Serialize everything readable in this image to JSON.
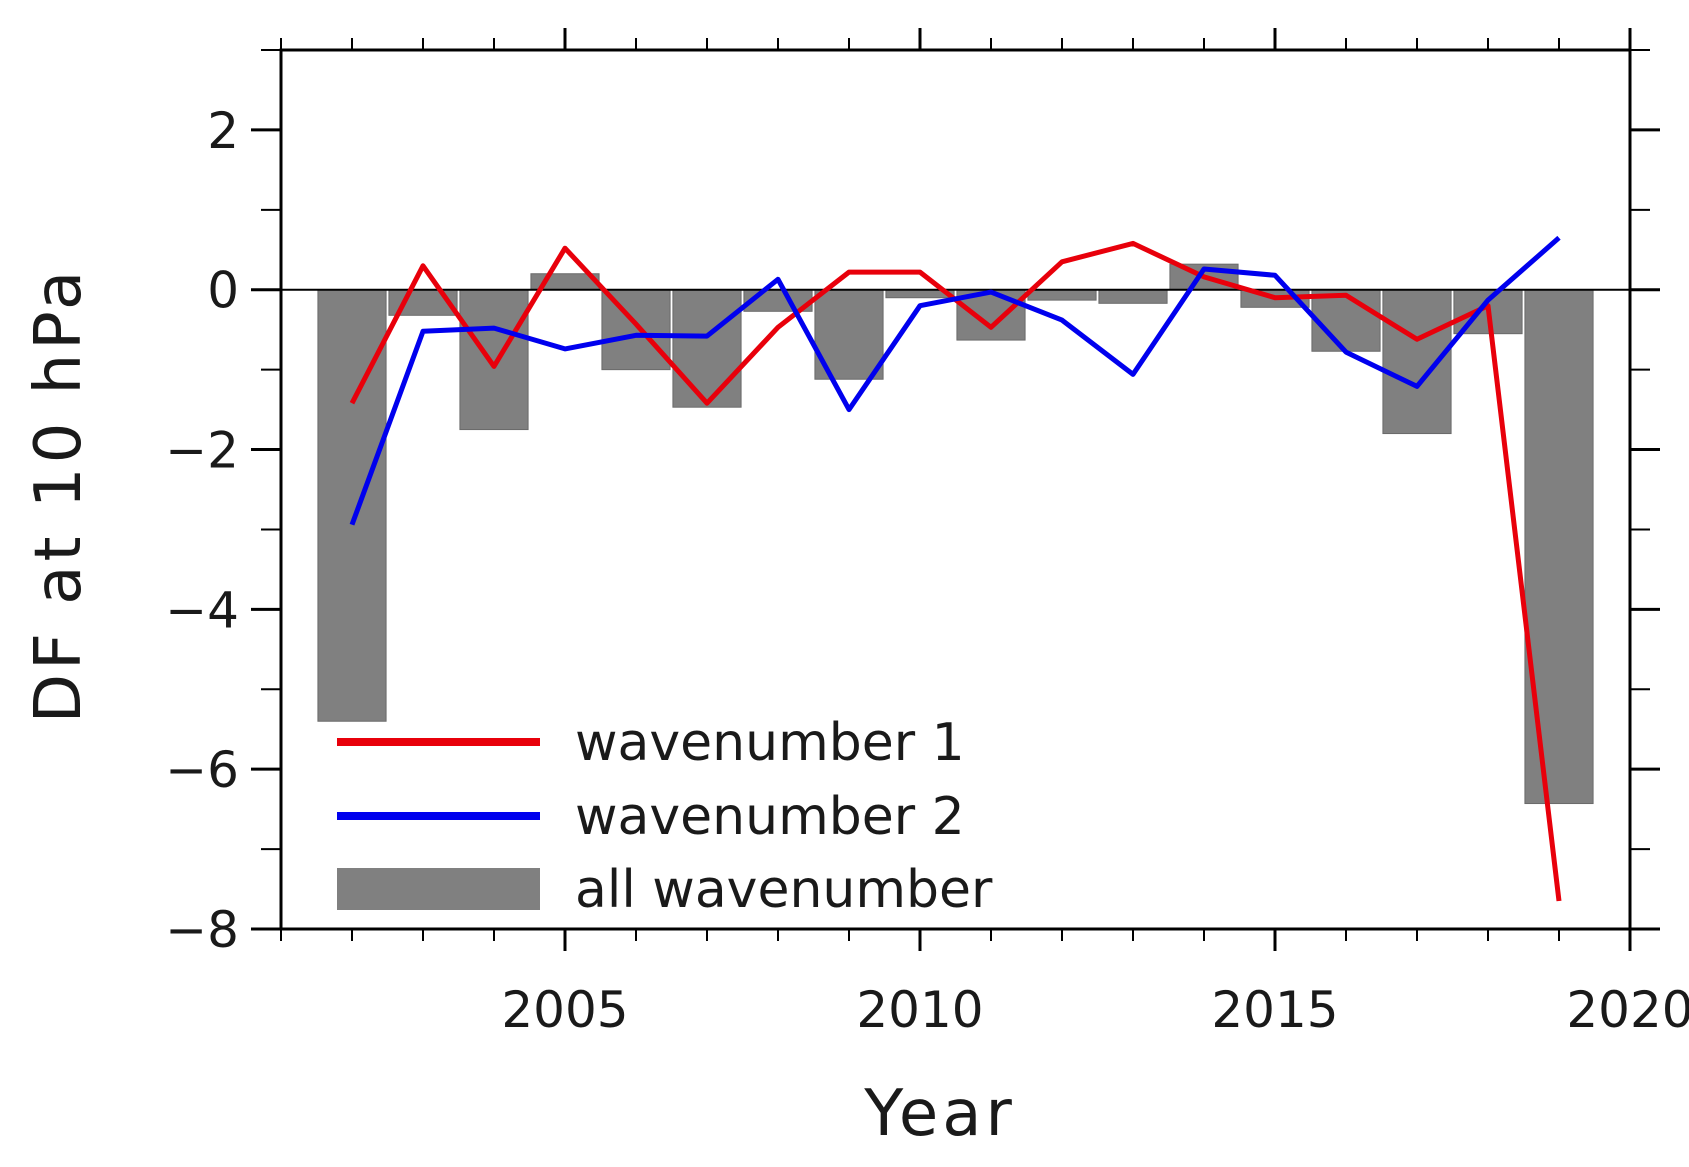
{
  "chart_data": {
    "type": "bar",
    "title": "",
    "xlabel": "Year",
    "ylabel": "DF at 10 hPa",
    "xlim": [
      2001,
      2020
    ],
    "ylim": [
      -8,
      3
    ],
    "x_ticks": [
      2005,
      2010,
      2015,
      2020
    ],
    "x_tick_labels": [
      "2005",
      "2010",
      "2015",
      "2020"
    ],
    "y_ticks": [
      -8,
      -6,
      -4,
      -2,
      0,
      2
    ],
    "y_tick_labels": [
      "−8",
      "−6",
      "−4",
      "−2",
      "0",
      "2"
    ],
    "zero_line": true,
    "grid": false,
    "legend_position": "bottom-left",
    "x": [
      2002,
      2003,
      2004,
      2005,
      2006,
      2007,
      2008,
      2009,
      2010,
      2011,
      2012,
      2013,
      2014,
      2015,
      2016,
      2017,
      2018,
      2019
    ],
    "series": [
      {
        "name": "all wavenumber",
        "kind": "bar",
        "color": "#808080",
        "values": [
          -5.4,
          -0.32,
          -1.75,
          0.2,
          -1.0,
          -1.47,
          -0.27,
          -1.12,
          -0.1,
          -0.63,
          -0.13,
          -0.17,
          0.32,
          -0.22,
          -0.77,
          -1.8,
          -0.55,
          -6.43
        ]
      },
      {
        "name": "wavenumber 1",
        "kind": "line",
        "color": "#e8000b",
        "values": [
          -1.42,
          0.3,
          -0.96,
          0.52,
          -0.43,
          -1.42,
          -0.47,
          0.22,
          0.22,
          -0.47,
          0.35,
          0.58,
          0.16,
          -0.1,
          -0.07,
          -0.62,
          -0.2,
          -7.65
        ]
      },
      {
        "name": "wavenumber 2",
        "kind": "line",
        "color": "#0000ee",
        "values": [
          -2.94,
          -0.52,
          -0.48,
          -0.74,
          -0.57,
          -0.58,
          0.13,
          -1.5,
          -0.2,
          -0.03,
          -0.38,
          -1.06,
          0.26,
          0.18,
          -0.78,
          -1.21,
          -0.13,
          0.65
        ]
      }
    ]
  }
}
